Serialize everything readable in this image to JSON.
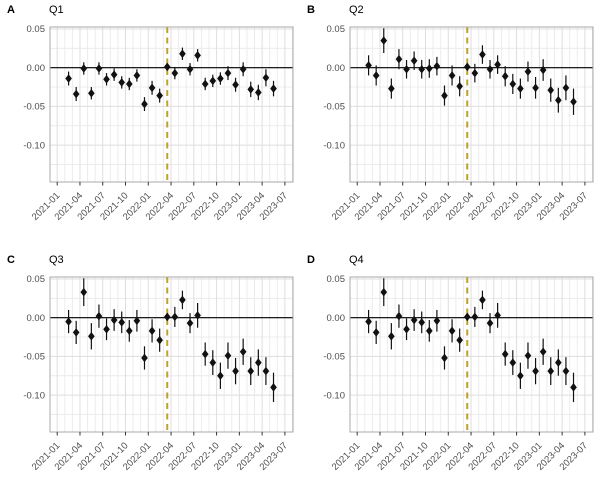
{
  "figure": {
    "panels": [
      {
        "tag": "A",
        "title": "Q1"
      },
      {
        "tag": "B",
        "title": "Q2"
      },
      {
        "tag": "C",
        "title": "Q3"
      },
      {
        "tag": "D",
        "title": "Q4"
      }
    ]
  },
  "style": {
    "background": "#ffffff",
    "grid_major": "#dedede",
    "grid_minor": "#ececec",
    "panel_border": "#a8a8a8",
    "axis_text": "#4d4d4d",
    "tick_mark": "#333333",
    "point_color": "#111111",
    "error_bar_color": "#111111",
    "zero_line_color": "#000000",
    "vline_color": "#bfa12b"
  },
  "chart_data": [
    {
      "panel": "A",
      "title": "Q1",
      "type": "scatter",
      "marker": "diamond-with-error-bar",
      "x_tick_labels": [
        "2021-01",
        "2021-04",
        "2021-07",
        "2021-10",
        "2022-01",
        "2022-04",
        "2022-07",
        "2022-10",
        "2023-01",
        "2023-04",
        "2023-07"
      ],
      "y_ticks": [
        0.05,
        0,
        -0.05,
        -0.1
      ],
      "y_tick_labels": [
        "0.05",
        "0.00",
        "-0.05",
        "-0.10"
      ],
      "ylim": [
        -0.148,
        0.053
      ],
      "hline_y": 0,
      "vline_month": "2022-03",
      "reference_month": "2022-03",
      "grid": "major-and-minor",
      "legend": false,
      "months": [
        "2021-02",
        "2021-03",
        "2021-04",
        "2021-05",
        "2021-06",
        "2021-07",
        "2021-08",
        "2021-09",
        "2021-10",
        "2021-11",
        "2021-12",
        "2022-01",
        "2022-02",
        "2022-03",
        "2022-04",
        "2022-05",
        "2022-06",
        "2022-07",
        "2022-08",
        "2022-09",
        "2022-10",
        "2022-11",
        "2022-12",
        "2023-01",
        "2023-02",
        "2023-03",
        "2023-04",
        "2023-05"
      ],
      "values": [
        -0.014,
        -0.034,
        -0.001,
        -0.033,
        -0.001,
        -0.015,
        -0.009,
        -0.019,
        -0.021,
        -0.01,
        -0.047,
        -0.026,
        -0.036,
        0.001,
        -0.007,
        0.018,
        -0.002,
        0.016,
        -0.021,
        -0.017,
        -0.014,
        -0.007,
        -0.022,
        -0.002,
        -0.028,
        -0.032,
        -0.013,
        -0.027
      ],
      "ci_half": [
        0.009,
        0.009,
        0.008,
        0.008,
        0.008,
        0.008,
        0.008,
        0.008,
        0.008,
        0.008,
        0.009,
        0.009,
        0.009,
        0.003,
        0.008,
        0.008,
        0.008,
        0.008,
        0.008,
        0.008,
        0.008,
        0.009,
        0.009,
        0.009,
        0.01,
        0.01,
        0.011,
        0.01
      ]
    },
    {
      "panel": "B",
      "title": "Q2",
      "type": "scatter",
      "marker": "diamond-with-error-bar",
      "x_tick_labels": [
        "2021-01",
        "2021-04",
        "2021-07",
        "2021-10",
        "2022-01",
        "2022-04",
        "2022-07",
        "2022-10",
        "2023-01",
        "2023-04",
        "2023-07"
      ],
      "y_ticks": [
        0.05,
        0,
        -0.05,
        -0.1
      ],
      "y_tick_labels": [
        "0.05",
        "0.00",
        "-0.05",
        "-0.10"
      ],
      "ylim": [
        -0.148,
        0.053
      ],
      "hline_y": 0,
      "vline_month": "2022-03",
      "reference_month": "2022-03",
      "grid": "major-and-minor",
      "legend": false,
      "months": [
        "2021-02",
        "2021-03",
        "2021-04",
        "2021-05",
        "2021-06",
        "2021-07",
        "2021-08",
        "2021-09",
        "2021-10",
        "2021-11",
        "2021-12",
        "2022-01",
        "2022-02",
        "2022-03",
        "2022-04",
        "2022-05",
        "2022-06",
        "2022-07",
        "2022-08",
        "2022-09",
        "2022-10",
        "2022-11",
        "2022-12",
        "2023-01",
        "2023-02",
        "2023-03",
        "2023-04",
        "2023-05"
      ],
      "values": [
        0.003,
        -0.01,
        0.035,
        -0.027,
        0.011,
        -0.002,
        0.009,
        -0.002,
        -0.001,
        0.002,
        -0.036,
        -0.01,
        -0.024,
        0.001,
        -0.007,
        0.017,
        -0.002,
        0.004,
        -0.011,
        -0.021,
        -0.027,
        -0.005,
        -0.026,
        -0.003,
        -0.029,
        -0.042,
        -0.026,
        -0.044
      ],
      "ci_half": [
        0.013,
        0.013,
        0.016,
        0.013,
        0.013,
        0.012,
        0.012,
        0.012,
        0.012,
        0.012,
        0.013,
        0.013,
        0.013,
        0.003,
        0.012,
        0.012,
        0.012,
        0.012,
        0.013,
        0.013,
        0.013,
        0.013,
        0.014,
        0.014,
        0.015,
        0.016,
        0.016,
        0.017
      ]
    },
    {
      "panel": "C",
      "title": "Q3",
      "type": "scatter",
      "marker": "diamond-with-error-bar",
      "x_tick_labels": [
        "2021-01",
        "2021-04",
        "2021-07",
        "2021-10",
        "2022-01",
        "2022-04",
        "2022-07",
        "2022-10",
        "2023-01",
        "2023-04",
        "2023-07"
      ],
      "y_ticks": [
        0.05,
        0,
        -0.05,
        -0.1
      ],
      "y_tick_labels": [
        "0.05",
        "0.00",
        "-0.05",
        "-0.10"
      ],
      "ylim": [
        -0.148,
        0.053
      ],
      "hline_y": 0,
      "vline_month": "2022-03",
      "reference_month": "2022-03",
      "grid": "major-and-minor",
      "legend": false,
      "months": [
        "2021-02",
        "2021-03",
        "2021-04",
        "2021-05",
        "2021-06",
        "2021-07",
        "2021-08",
        "2021-09",
        "2021-10",
        "2021-11",
        "2021-12",
        "2022-01",
        "2022-02",
        "2022-03",
        "2022-04",
        "2022-05",
        "2022-06",
        "2022-07",
        "2022-08",
        "2022-09",
        "2022-10",
        "2022-11",
        "2022-12",
        "2023-01",
        "2023-02",
        "2023-03",
        "2023-04",
        "2023-05"
      ],
      "values": [
        -0.005,
        -0.019,
        0.033,
        -0.024,
        0.002,
        -0.015,
        -0.003,
        -0.006,
        -0.017,
        -0.004,
        -0.052,
        -0.017,
        -0.029,
        0.001,
        0.001,
        0.023,
        -0.007,
        0.003,
        -0.047,
        -0.058,
        -0.075,
        -0.049,
        -0.069,
        -0.044,
        -0.069,
        -0.058,
        -0.069,
        -0.09
      ],
      "ci_half": [
        0.015,
        0.015,
        0.018,
        0.017,
        0.015,
        0.014,
        0.014,
        0.014,
        0.014,
        0.014,
        0.015,
        0.015,
        0.015,
        0.003,
        0.013,
        0.012,
        0.013,
        0.016,
        0.015,
        0.016,
        0.017,
        0.017,
        0.017,
        0.017,
        0.018,
        0.017,
        0.018,
        0.019
      ]
    },
    {
      "panel": "D",
      "title": "Q4",
      "type": "scatter",
      "marker": "diamond-with-error-bar",
      "x_tick_labels": [
        "2021-01",
        "2021-04",
        "2021-07",
        "2021-10",
        "2022-01",
        "2022-04",
        "2022-07",
        "2022-10",
        "2023-01",
        "2023-04",
        "2023-07"
      ],
      "y_ticks": [
        0.05,
        0,
        -0.05,
        -0.1
      ],
      "y_tick_labels": [
        "0.05",
        "0.00",
        "-0.05",
        "-0.10"
      ],
      "ylim": [
        -0.148,
        0.053
      ],
      "hline_y": 0,
      "vline_month": "2022-03",
      "reference_month": "2022-03",
      "grid": "major-and-minor",
      "legend": false,
      "months": [
        "2021-02",
        "2021-03",
        "2021-04",
        "2021-05",
        "2021-06",
        "2021-07",
        "2021-08",
        "2021-09",
        "2021-10",
        "2021-11",
        "2021-12",
        "2022-01",
        "2022-02",
        "2022-03",
        "2022-04",
        "2022-05",
        "2022-06",
        "2022-07",
        "2022-08",
        "2022-09",
        "2022-10",
        "2022-11",
        "2022-12",
        "2023-01",
        "2023-02",
        "2023-03",
        "2023-04",
        "2023-05"
      ],
      "values": [
        -0.005,
        -0.019,
        0.033,
        -0.024,
        0.002,
        -0.015,
        -0.003,
        -0.006,
        -0.017,
        -0.004,
        -0.052,
        -0.017,
        -0.029,
        0.001,
        0.001,
        0.023,
        -0.007,
        0.003,
        -0.047,
        -0.058,
        -0.075,
        -0.049,
        -0.069,
        -0.044,
        -0.069,
        -0.058,
        -0.069,
        -0.09
      ],
      "ci_half": [
        0.015,
        0.015,
        0.018,
        0.017,
        0.015,
        0.014,
        0.014,
        0.014,
        0.014,
        0.014,
        0.015,
        0.015,
        0.015,
        0.003,
        0.013,
        0.012,
        0.013,
        0.016,
        0.015,
        0.016,
        0.017,
        0.017,
        0.017,
        0.017,
        0.018,
        0.017,
        0.018,
        0.019
      ]
    }
  ]
}
